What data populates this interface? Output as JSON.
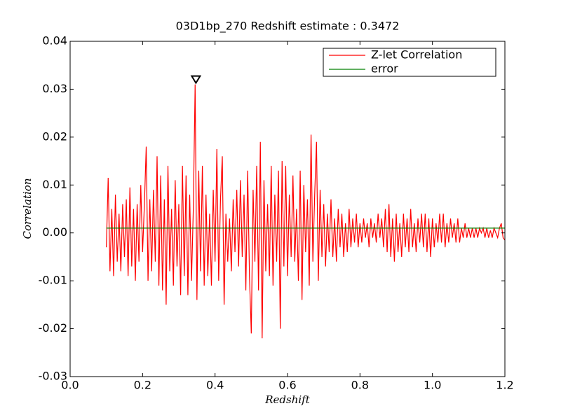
{
  "chart_data": {
    "type": "line",
    "title": "03D1bp_270 Redshift estimate : 0.3472",
    "xlabel": "Redshift",
    "ylabel": "Correlation",
    "xlim": [
      0,
      1.2
    ],
    "xticks": [
      {
        "value": 0,
        "label": "0.0"
      },
      0.2,
      0.4,
      0.6,
      0.8,
      {
        "value": 1,
        "label": "1.0"
      },
      1.2
    ],
    "ylim": [
      -0.03,
      0.04
    ],
    "yticks": [
      -0.03,
      -0.02,
      -0.01,
      {
        "value": 0,
        "label": "0.00"
      },
      0.01,
      0.02,
      0.03,
      0.04
    ],
    "grid": false,
    "legend": "upper right",
    "peak": {
      "x": 0.3472,
      "y": 0.031
    },
    "series": [
      {
        "name": "Z-let Correlation",
        "color": "#ff0000",
        "x": [
          0.1,
          0.105,
          0.11,
          0.115,
          0.12,
          0.125,
          0.13,
          0.135,
          0.14,
          0.145,
          0.15,
          0.155,
          0.16,
          0.165,
          0.17,
          0.175,
          0.18,
          0.185,
          0.19,
          0.195,
          0.2,
          0.205,
          0.21,
          0.215,
          0.22,
          0.225,
          0.23,
          0.235,
          0.24,
          0.245,
          0.25,
          0.255,
          0.26,
          0.265,
          0.27,
          0.275,
          0.28,
          0.285,
          0.29,
          0.295,
          0.3,
          0.305,
          0.31,
          0.315,
          0.32,
          0.325,
          0.33,
          0.335,
          0.34,
          0.345,
          0.35,
          0.355,
          0.36,
          0.365,
          0.37,
          0.375,
          0.38,
          0.385,
          0.39,
          0.395,
          0.4,
          0.405,
          0.41,
          0.415,
          0.42,
          0.425,
          0.43,
          0.435,
          0.44,
          0.445,
          0.45,
          0.455,
          0.46,
          0.465,
          0.47,
          0.475,
          0.48,
          0.485,
          0.49,
          0.495,
          0.5,
          0.505,
          0.51,
          0.515,
          0.52,
          0.525,
          0.53,
          0.535,
          0.54,
          0.545,
          0.55,
          0.555,
          0.56,
          0.565,
          0.57,
          0.575,
          0.58,
          0.585,
          0.59,
          0.595,
          0.6,
          0.605,
          0.61,
          0.615,
          0.62,
          0.625,
          0.63,
          0.635,
          0.64,
          0.645,
          0.65,
          0.655,
          0.66,
          0.665,
          0.67,
          0.675,
          0.68,
          0.685,
          0.69,
          0.695,
          0.7,
          0.705,
          0.71,
          0.715,
          0.72,
          0.725,
          0.73,
          0.735,
          0.74,
          0.745,
          0.75,
          0.755,
          0.76,
          0.765,
          0.77,
          0.775,
          0.78,
          0.785,
          0.79,
          0.795,
          0.8,
          0.805,
          0.81,
          0.815,
          0.82,
          0.825,
          0.83,
          0.835,
          0.84,
          0.845,
          0.85,
          0.855,
          0.86,
          0.865,
          0.87,
          0.875,
          0.88,
          0.885,
          0.89,
          0.895,
          0.9,
          0.905,
          0.91,
          0.915,
          0.92,
          0.925,
          0.93,
          0.935,
          0.94,
          0.945,
          0.95,
          0.955,
          0.96,
          0.965,
          0.97,
          0.975,
          0.98,
          0.985,
          0.99,
          0.995,
          1.0,
          1.005,
          1.01,
          1.015,
          1.02,
          1.025,
          1.03,
          1.035,
          1.04,
          1.045,
          1.05,
          1.055,
          1.06,
          1.065,
          1.07,
          1.075,
          1.08,
          1.085,
          1.09,
          1.095,
          1.1,
          1.105,
          1.11,
          1.115,
          1.12,
          1.125,
          1.13,
          1.135,
          1.14,
          1.145,
          1.15,
          1.155,
          1.16,
          1.165,
          1.17,
          1.175,
          1.18,
          1.185,
          1.19,
          1.195,
          1.2
        ],
        "values": [
          -0.003,
          0.0115,
          -0.008,
          0.005,
          -0.009,
          0.008,
          -0.006,
          0.004,
          -0.008,
          0.006,
          -0.005,
          0.007,
          -0.009,
          0.0095,
          -0.007,
          0.005,
          -0.01,
          0.006,
          -0.006,
          0.01,
          -0.004,
          0.006,
          0.018,
          -0.01,
          0.007,
          -0.008,
          0.009,
          -0.006,
          0.016,
          -0.011,
          0.012,
          -0.012,
          0.007,
          -0.015,
          0.014,
          -0.008,
          0.005,
          -0.011,
          0.011,
          -0.007,
          0.006,
          -0.013,
          0.014,
          -0.009,
          0.012,
          -0.013,
          0.008,
          -0.01,
          0.005,
          0.031,
          -0.014,
          0.013,
          -0.008,
          0.014,
          -0.011,
          0.008,
          -0.009,
          0.004,
          -0.011,
          0.009,
          -0.006,
          0.0175,
          -0.01,
          0.007,
          0.016,
          -0.015,
          0.004,
          -0.006,
          0.003,
          -0.008,
          0.007,
          -0.004,
          0.009,
          -0.007,
          0.011,
          -0.005,
          0.008,
          -0.012,
          0.013,
          -0.009,
          -0.021,
          0.009,
          -0.006,
          0.014,
          -0.012,
          0.019,
          -0.022,
          0.011,
          -0.008,
          0.006,
          -0.009,
          0.014,
          -0.011,
          0.008,
          -0.006,
          0.013,
          -0.02,
          0.015,
          -0.007,
          0.014,
          -0.009,
          0.008,
          -0.005,
          0.012,
          -0.006,
          0.005,
          -0.01,
          0.013,
          -0.014,
          0.01,
          -0.004,
          0.007,
          -0.011,
          0.0205,
          -0.006,
          0.008,
          0.019,
          -0.01,
          0.009,
          -0.005,
          0.006,
          -0.007,
          0.004,
          -0.004,
          0.007,
          -0.005,
          0.003,
          -0.006,
          0.005,
          -0.003,
          0.004,
          -0.005,
          0.002,
          -0.004,
          0.005,
          -0.003,
          0.003,
          -0.002,
          0.004,
          -0.003,
          0.002,
          -0.002,
          0.003,
          -0.001,
          0.002,
          -0.003,
          0.003,
          -0.001,
          0.002,
          -0.002,
          0.004,
          -0.001,
          0.003,
          -0.003,
          0.005,
          -0.004,
          0.006,
          -0.005,
          0.003,
          -0.006,
          0.004,
          -0.004,
          0.002,
          -0.005,
          0.004,
          -0.003,
          0.003,
          -0.004,
          0.005,
          -0.003,
          0.002,
          -0.004,
          0.003,
          -0.002,
          0.004,
          -0.003,
          0.004,
          -0.004,
          0.003,
          -0.005,
          0.003,
          -0.003,
          0.002,
          -0.002,
          0.004,
          -0.002,
          0.004,
          -0.003,
          0.002,
          -0.002,
          0.003,
          -0.001,
          0.002,
          -0.002,
          0.003,
          -0.002,
          0.001,
          -0.001,
          0.002,
          -0.001,
          0.001,
          -0.001,
          0.001,
          -0.001,
          0.001,
          -0.001,
          0.001,
          0,
          0.001,
          -0.001,
          0.001,
          -0.001,
          0.0005,
          -0.001,
          0.001,
          0,
          -0.001,
          0.001,
          0.002,
          -0.001,
          -0.0015
        ]
      },
      {
        "name": "error",
        "color": "#008000",
        "x": [
          0.1,
          1.2
        ],
        "values": [
          0.001,
          0.001
        ]
      }
    ]
  }
}
